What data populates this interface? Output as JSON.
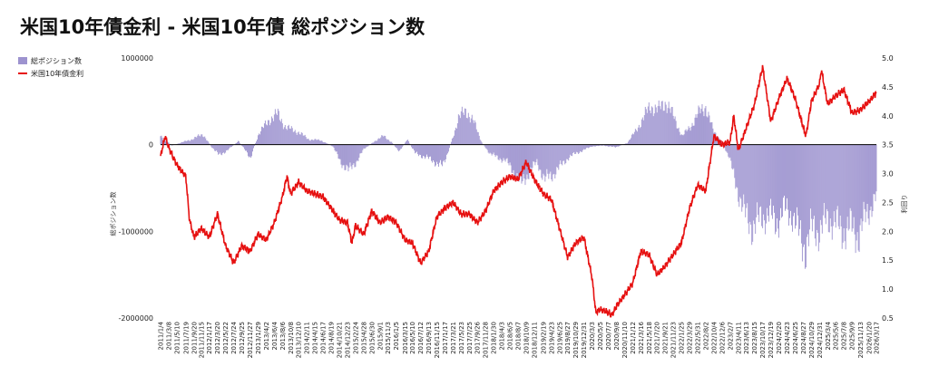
{
  "title": "米国10年債金利 - 米国10年債 総ポジション数",
  "chart_data": {
    "type": "bar+line",
    "title": "米国10年債金利 - 米国10年債 総ポジション数",
    "legend": {
      "placement": "top-left",
      "entries": [
        {
          "name": "総ポジション数",
          "kind": "bar",
          "color": "#9d93cf"
        },
        {
          "name": "米国10年債金利",
          "kind": "line",
          "color": "#e61010"
        }
      ]
    },
    "y_left": {
      "label": "総ポジション数",
      "ticks": [
        "1000000",
        "0",
        "-1000000",
        "-2000000"
      ],
      "range": [
        -2000000,
        1000000
      ]
    },
    "y_right": {
      "label": "利回り",
      "ticks": [
        "5.0",
        "4.5",
        "4.0",
        "3.5",
        "3.0",
        "2.5",
        "2.0",
        "1.5",
        "1.0",
        "0.5"
      ],
      "range": [
        0.5,
        5.0
      ]
    },
    "x_tick_labels": [
      "2011/1/4",
      "2011/3/8",
      "2011/5/10",
      "2011/7/19",
      "2011/9/20",
      "2011/11/15",
      "2012/1/17",
      "2012/3/20",
      "2012/5/22",
      "2012/7/24",
      "2012/9/25",
      "2012/11/27",
      "2013/1/29",
      "2013/4/2",
      "2013/6/4",
      "2013/8/6",
      "2013/10/8",
      "2013/12/10",
      "2014/2/11",
      "2014/4/15",
      "2014/6/17",
      "2014/8/19",
      "2014/10/21",
      "2014/12/23",
      "2015/2/24",
      "2015/4/28",
      "2015/6/30",
      "2015/9/1",
      "2015/11/3",
      "2016/1/5",
      "2016/3/15",
      "2016/5/10",
      "2016/7/12",
      "2016/9/13",
      "2016/11/15",
      "2017/1/17",
      "2017/3/21",
      "2017/5/23",
      "2017/7/25",
      "2017/9/26",
      "2017/11/28",
      "2018/1/30",
      "2018/4/3",
      "2018/6/5",
      "2018/8/7",
      "2018/10/9",
      "2018/12/11",
      "2019/2/19",
      "2019/4/23",
      "2019/6/25",
      "2019/8/27",
      "2019/10/29",
      "2019/12/31",
      "2020/3/3",
      "2020/5/5",
      "2020/7/7",
      "2020/9/8",
      "2020/11/10",
      "2021/1/12",
      "2021/3/16",
      "2021/5/18",
      "2021/7/20",
      "2021/9/21",
      "2021/11/23",
      "2022/1/25",
      "2022/3/29",
      "2022/5/31",
      "2022/8/2",
      "2022/10/4",
      "2022/12/6",
      "2023/2/7",
      "2023/4/11",
      "2023/6/13",
      "2023/8/15",
      "2023/10/17",
      "2023/12/19",
      "2024/2/20",
      "2024/4/23",
      "2024/6/25",
      "2024/8/27",
      "2024/10/29",
      "2024/12/31",
      "2025/3/4",
      "2025/5/6",
      "2025/7/8",
      "2025/9/9",
      "2025/11/13",
      "2026/1/20",
      "2026/3/17"
    ],
    "yield_series": [
      [
        "2011/1/4",
        3.3
      ],
      [
        "2011/2/8",
        3.65
      ],
      [
        "2011/3/8",
        3.45
      ],
      [
        "2011/5/10",
        3.15
      ],
      [
        "2011/7/19",
        2.95
      ],
      [
        "2011/8/16",
        2.2
      ],
      [
        "2011/9/20",
        1.9
      ],
      [
        "2011/11/15",
        2.05
      ],
      [
        "2012/1/17",
        1.9
      ],
      [
        "2012/3/20",
        2.3
      ],
      [
        "2012/5/22",
        1.75
      ],
      [
        "2012/7/24",
        1.45
      ],
      [
        "2012/9/25",
        1.75
      ],
      [
        "2012/11/27",
        1.65
      ],
      [
        "2013/1/29",
        1.95
      ],
      [
        "2013/4/2",
        1.85
      ],
      [
        "2013/6/4",
        2.15
      ],
      [
        "2013/8/6",
        2.6
      ],
      [
        "2013/9/10",
        2.95
      ],
      [
        "2013/10/8",
        2.65
      ],
      [
        "2013/12/10",
        2.85
      ],
      [
        "2014/2/11",
        2.7
      ],
      [
        "2014/4/15",
        2.65
      ],
      [
        "2014/6/17",
        2.6
      ],
      [
        "2014/8/19",
        2.4
      ],
      [
        "2014/10/21",
        2.2
      ],
      [
        "2014/12/23",
        2.15
      ],
      [
        "2015/1/27",
        1.8
      ],
      [
        "2015/2/24",
        2.1
      ],
      [
        "2015/4/28",
        1.95
      ],
      [
        "2015/6/30",
        2.35
      ],
      [
        "2015/9/1",
        2.15
      ],
      [
        "2015/11/3",
        2.25
      ],
      [
        "2016/1/5",
        2.15
      ],
      [
        "2016/3/15",
        1.85
      ],
      [
        "2016/5/10",
        1.8
      ],
      [
        "2016/7/12",
        1.45
      ],
      [
        "2016/9/13",
        1.65
      ],
      [
        "2016/11/15",
        2.25
      ],
      [
        "2017/1/17",
        2.4
      ],
      [
        "2017/3/21",
        2.5
      ],
      [
        "2017/5/23",
        2.3
      ],
      [
        "2017/7/25",
        2.3
      ],
      [
        "2017/9/26",
        2.15
      ],
      [
        "2017/11/28",
        2.35
      ],
      [
        "2018/1/30",
        2.7
      ],
      [
        "2018/4/3",
        2.85
      ],
      [
        "2018/6/5",
        2.95
      ],
      [
        "2018/8/7",
        2.9
      ],
      [
        "2018/10/9",
        3.2
      ],
      [
        "2018/12/11",
        2.9
      ],
      [
        "2019/2/19",
        2.65
      ],
      [
        "2019/4/23",
        2.55
      ],
      [
        "2019/6/25",
        2.05
      ],
      [
        "2019/8/27",
        1.55
      ],
      [
        "2019/10/29",
        1.8
      ],
      [
        "2019/12/31",
        1.9
      ],
      [
        "2020/3/3",
        1.2
      ],
      [
        "2020/4/1",
        0.6
      ],
      [
        "2020/5/5",
        0.65
      ],
      [
        "2020/7/7",
        0.6
      ],
      [
        "2020/8/4",
        0.55
      ],
      [
        "2020/9/8",
        0.7
      ],
      [
        "2020/11/10",
        0.9
      ],
      [
        "2021/1/12",
        1.1
      ],
      [
        "2021/3/16",
        1.65
      ],
      [
        "2021/5/18",
        1.6
      ],
      [
        "2021/7/20",
        1.25
      ],
      [
        "2021/9/21",
        1.4
      ],
      [
        "2021/11/23",
        1.6
      ],
      [
        "2022/1/25",
        1.8
      ],
      [
        "2022/3/29",
        2.4
      ],
      [
        "2022/5/31",
        2.8
      ],
      [
        "2022/8/2",
        2.7
      ],
      [
        "2022/10/4",
        3.65
      ],
      [
        "2022/12/6",
        3.5
      ],
      [
        "2023/2/7",
        3.55
      ],
      [
        "2023/3/7",
        4.0
      ],
      [
        "2023/4/11",
        3.4
      ],
      [
        "2023/6/13",
        3.8
      ],
      [
        "2023/8/15",
        4.2
      ],
      [
        "2023/10/17",
        4.85
      ],
      [
        "2023/12/19",
        3.9
      ],
      [
        "2024/2/20",
        4.3
      ],
      [
        "2024/4/23",
        4.65
      ],
      [
        "2024/6/25",
        4.3
      ],
      [
        "2024/8/27",
        3.8
      ],
      [
        "2024/9/17",
        3.65
      ],
      [
        "2024/10/29",
        4.25
      ],
      [
        "2024/12/31",
        4.55
      ],
      [
        "2025/1/14",
        4.8
      ],
      [
        "2025/3/4",
        4.2
      ],
      [
        "2025/5/6",
        4.35
      ],
      [
        "2025/7/8",
        4.45
      ],
      [
        "2025/9/9",
        4.05
      ],
      [
        "2025/11/13",
        4.1
      ],
      [
        "2026/1/20",
        4.25
      ],
      [
        "2026/3/17",
        4.4
      ]
    ],
    "positions_series": [
      [
        "2011/1/4",
        100000
      ],
      [
        "2011/4/1",
        -10000
      ],
      [
        "2011/9/1",
        60000
      ],
      [
        "2011/12/1",
        120000
      ],
      [
        "2012/2/1",
        -20000
      ],
      [
        "2012/4/1",
        -120000
      ],
      [
        "2012/6/1",
        -70000
      ],
      [
        "2012/9/1",
        40000
      ],
      [
        "2012/12/1",
        -150000
      ],
      [
        "2013/2/1",
        120000
      ],
      [
        "2013/5/1",
        300000
      ],
      [
        "2013/7/1",
        350000
      ],
      [
        "2013/9/1",
        200000
      ],
      [
        "2013/12/1",
        150000
      ],
      [
        "2014/3/1",
        60000
      ],
      [
        "2014/6/1",
        50000
      ],
      [
        "2014/9/1",
        -20000
      ],
      [
        "2014/11/1",
        -200000
      ],
      [
        "2015/1/1",
        -300000
      ],
      [
        "2015/3/1",
        -200000
      ],
      [
        "2015/5/1",
        -50000
      ],
      [
        "2015/8/1",
        50000
      ],
      [
        "2015/10/1",
        100000
      ],
      [
        "2015/12/1",
        30000
      ],
      [
        "2016/2/1",
        -80000
      ],
      [
        "2016/4/1",
        60000
      ],
      [
        "2016/6/1",
        -100000
      ],
      [
        "2016/9/1",
        -150000
      ],
      [
        "2016/11/1",
        -200000
      ],
      [
        "2017/1/1",
        -250000
      ],
      [
        "2017/3/1",
        0
      ],
      [
        "2017/5/1",
        300000
      ],
      [
        "2017/7/1",
        400000
      ],
      [
        "2017/9/1",
        250000
      ],
      [
        "2017/11/1",
        20000
      ],
      [
        "2018/1/1",
        -100000
      ],
      [
        "2018/3/1",
        -150000
      ],
      [
        "2018/5/1",
        -180000
      ],
      [
        "2018/7/1",
        -300000
      ],
      [
        "2018/9/1",
        -450000
      ],
      [
        "2018/11/1",
        -320000
      ],
      [
        "2019/1/1",
        -200000
      ],
      [
        "2019/3/1",
        -400000
      ],
      [
        "2019/5/1",
        -350000
      ],
      [
        "2019/7/1",
        -250000
      ],
      [
        "2019/9/1",
        -150000
      ],
      [
        "2019/11/1",
        -100000
      ],
      [
        "2020/1/1",
        -60000
      ],
      [
        "2020/3/1",
        -20000
      ],
      [
        "2020/6/1",
        -10000
      ],
      [
        "2020/9/1",
        -30000
      ],
      [
        "2020/12/1",
        20000
      ],
      [
        "2021/2/1",
        150000
      ],
      [
        "2021/4/1",
        300000
      ],
      [
        "2021/6/1",
        450000
      ],
      [
        "2021/8/1",
        400000
      ],
      [
        "2021/10/1",
        500000
      ],
      [
        "2021/12/1",
        300000
      ],
      [
        "2022/2/1",
        100000
      ],
      [
        "2022/4/1",
        200000
      ],
      [
        "2022/6/1",
        350000
      ],
      [
        "2022/8/1",
        450000
      ],
      [
        "2022/10/1",
        150000
      ],
      [
        "2022/12/1",
        50000
      ],
      [
        "2023/2/1",
        -150000
      ],
      [
        "2023/4/1",
        -500000
      ],
      [
        "2023/6/1",
        -800000
      ],
      [
        "2023/8/1",
        -950000
      ],
      [
        "2023/10/1",
        -850000
      ],
      [
        "2023/12/1",
        -800000
      ],
      [
        "2024/2/1",
        -900000
      ],
      [
        "2024/4/1",
        -750000
      ],
      [
        "2024/6/1",
        -800000
      ],
      [
        "2024/8/1",
        -1050000
      ],
      [
        "2024/9/15",
        -1200000
      ],
      [
        "2024/11/1",
        -950000
      ],
      [
        "2025/1/1",
        -1000000
      ],
      [
        "2025/3/1",
        -850000
      ],
      [
        "2025/5/1",
        -900000
      ],
      [
        "2025/7/1",
        -1000000
      ],
      [
        "2025/9/1",
        -950000
      ],
      [
        "2025/11/1",
        -1050000
      ],
      [
        "2026/1/1",
        -800000
      ],
      [
        "2026/3/17",
        -600000
      ]
    ]
  }
}
